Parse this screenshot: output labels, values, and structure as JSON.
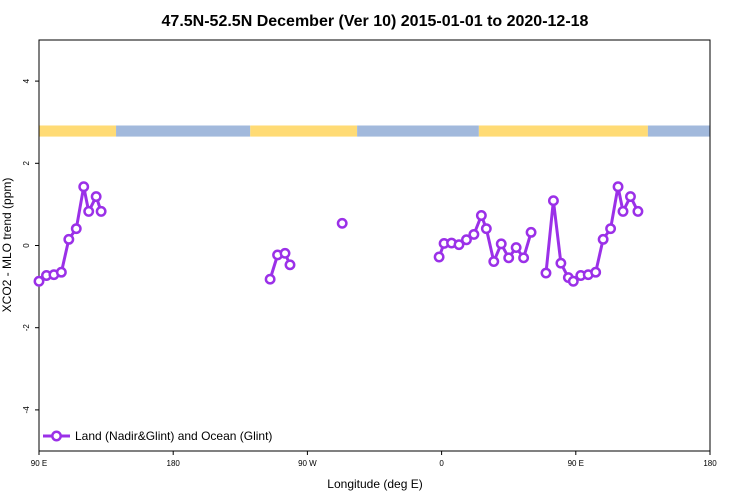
{
  "chart_data": {
    "type": "line",
    "title": "47.5N-52.5N December (Ver 10)   2015-01-01 to 2020-12-18",
    "xlabel": "Longitude (deg E)",
    "ylabel": "XCO2 - MLO trend (ppm)",
    "xlim": [
      -90,
      180
    ],
    "ylim": [
      -5,
      5
    ],
    "x_ticks": [
      {
        "value": -90,
        "label": "90 E"
      },
      {
        "value": -36,
        "label": "180"
      },
      {
        "value": 18,
        "label": "90 W"
      },
      {
        "value": 72,
        "label": "0"
      },
      {
        "value": 126,
        "label": "90 E"
      },
      {
        "value": 180,
        "label": "180"
      }
    ],
    "y_ticks": [
      {
        "value": -4,
        "label": "-4"
      },
      {
        "value": -2,
        "label": "-2"
      },
      {
        "value": 0,
        "label": "0"
      },
      {
        "value": 2,
        "label": "2"
      },
      {
        "value": 4,
        "label": "4"
      }
    ],
    "land_ocean_band": {
      "y_range": [
        2.65,
        2.92
      ],
      "land_color": "#FFDB75",
      "ocean_color": "#A2B9DC",
      "segments": [
        {
          "type": "land",
          "start": -90,
          "end": -59
        },
        {
          "type": "ocean",
          "start": -59,
          "end": -5
        },
        {
          "type": "land",
          "start": -5,
          "end": 38
        },
        {
          "type": "ocean",
          "start": 38,
          "end": 87
        },
        {
          "type": "land",
          "start": 87,
          "end": 155
        },
        {
          "type": "ocean",
          "start": 155,
          "end": 180
        }
      ]
    },
    "series": [
      {
        "name": "Land (Nadir&Glint) and Ocean (Glint)",
        "color": "#9B30E8",
        "segments": [
          [
            {
              "x": -90,
              "y": -0.87
            },
            {
              "x": -87,
              "y": -0.73
            },
            {
              "x": -84,
              "y": -0.71
            },
            {
              "x": -81,
              "y": -0.65
            },
            {
              "x": -78,
              "y": 0.15
            },
            {
              "x": -75,
              "y": 0.41
            },
            {
              "x": -72,
              "y": 1.43
            },
            {
              "x": -70,
              "y": 0.83
            },
            {
              "x": -67,
              "y": 1.19
            },
            {
              "x": -65,
              "y": 0.83
            }
          ],
          [
            {
              "x": 3,
              "y": -0.82
            },
            {
              "x": 6,
              "y": -0.23
            },
            {
              "x": 9,
              "y": -0.19
            },
            {
              "x": 11,
              "y": -0.47
            }
          ],
          [
            {
              "x": 32,
              "y": 0.54
            }
          ],
          [
            {
              "x": 71,
              "y": -0.28
            },
            {
              "x": 73,
              "y": 0.05
            },
            {
              "x": 76,
              "y": 0.06
            },
            {
              "x": 79,
              "y": 0.02
            },
            {
              "x": 82,
              "y": 0.14
            },
            {
              "x": 85,
              "y": 0.27
            },
            {
              "x": 88,
              "y": 0.73
            },
            {
              "x": 90,
              "y": 0.41
            },
            {
              "x": 93,
              "y": -0.39
            },
            {
              "x": 96,
              "y": 0.04
            },
            {
              "x": 99,
              "y": -0.3
            },
            {
              "x": 102,
              "y": -0.05
            },
            {
              "x": 105,
              "y": -0.3
            },
            {
              "x": 108,
              "y": 0.32
            }
          ],
          [
            {
              "x": 114,
              "y": -0.67
            },
            {
              "x": 117,
              "y": 1.09
            },
            {
              "x": 120,
              "y": -0.43
            },
            {
              "x": 123,
              "y": -0.78
            },
            {
              "x": 125,
              "y": -0.87
            },
            {
              "x": 128,
              "y": -0.73
            },
            {
              "x": 131,
              "y": -0.71
            },
            {
              "x": 134,
              "y": -0.65
            },
            {
              "x": 137,
              "y": 0.15
            },
            {
              "x": 140,
              "y": 0.41
            },
            {
              "x": 143,
              "y": 1.43
            },
            {
              "x": 145,
              "y": 0.83
            },
            {
              "x": 148,
              "y": 1.19
            },
            {
              "x": 151,
              "y": 0.83
            }
          ]
        ]
      }
    ],
    "legend": {
      "position": "bottom-left",
      "label": "Land (Nadir&Glint) and Ocean (Glint)"
    }
  }
}
